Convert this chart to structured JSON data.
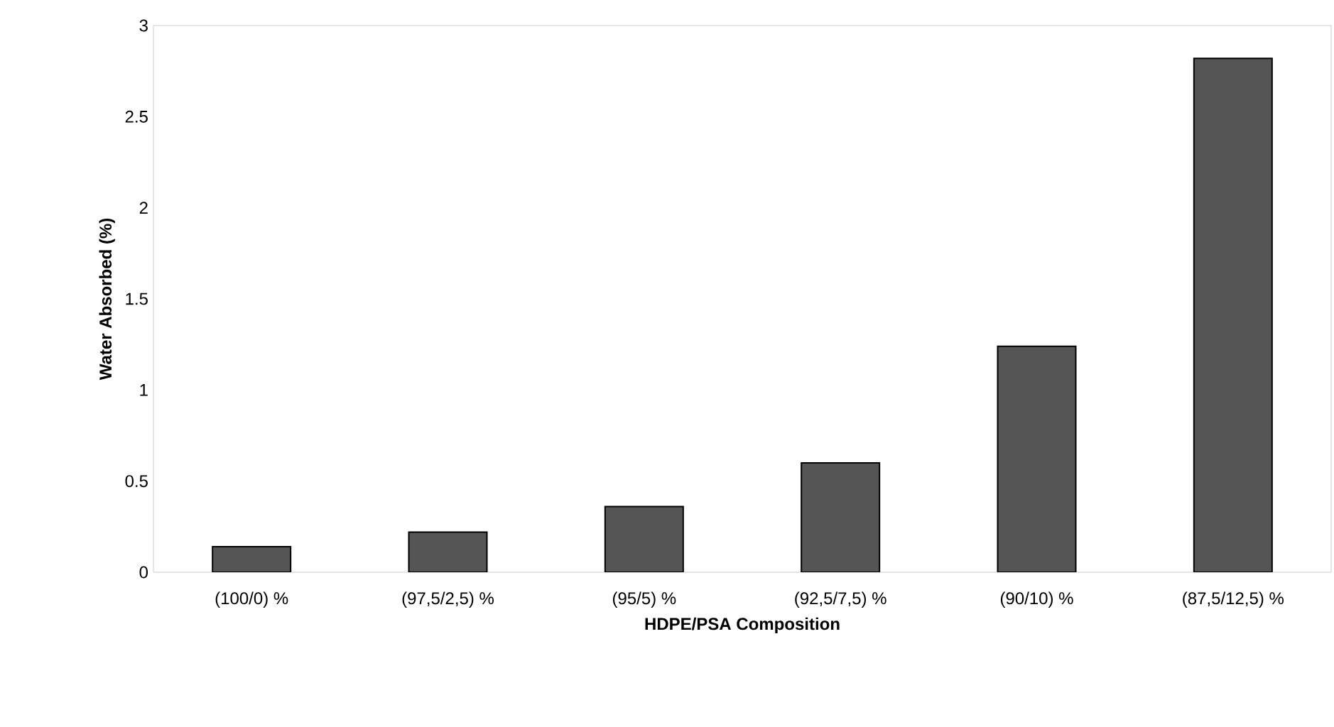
{
  "chart_data": {
    "type": "bar",
    "xlabel": "HDPE/PSA Composition",
    "ylabel": "Water Absorbed (%)",
    "categories": [
      "(100/0) %",
      "(97,5/2,5) %",
      "(95/5) %",
      "(92,5/7,5) %",
      "(90/10) %",
      "(87,5/12,5) %"
    ],
    "values": [
      0.14,
      0.22,
      0.36,
      0.6,
      1.24,
      2.82
    ],
    "color": "#555555",
    "ylim": [
      0,
      3
    ],
    "yticks": [
      0,
      0.5,
      1,
      1.5,
      2,
      2.5,
      3
    ]
  }
}
